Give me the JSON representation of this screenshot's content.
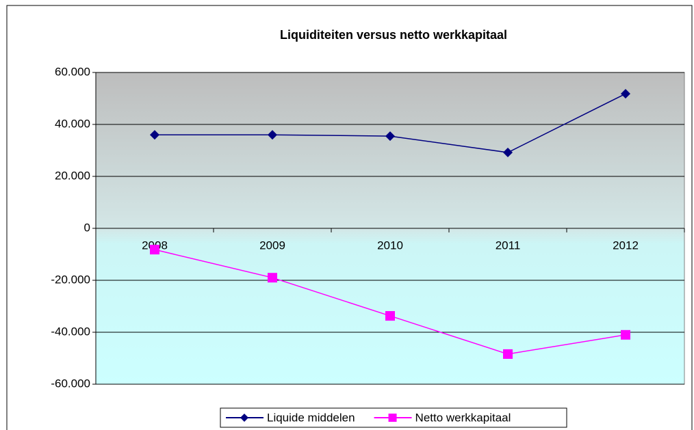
{
  "chart_data": {
    "type": "line",
    "title": "Liquiditeiten  versus netto werkkapitaal",
    "categories": [
      "2008",
      "2009",
      "2010",
      "2011",
      "2012"
    ],
    "series": [
      {
        "name": "Liquide middelen",
        "color": "#000080",
        "marker": "diamond",
        "values": [
          36000,
          36000,
          35500,
          29200,
          51800
        ]
      },
      {
        "name": "Netto werkkapitaal",
        "color": "#ff00ff",
        "marker": "square",
        "values": [
          -8200,
          -19000,
          -33700,
          -48400,
          -41000
        ]
      }
    ],
    "ylim": [
      -60000,
      60000
    ],
    "yticks": [
      {
        "value": -60000,
        "label": "-60.000"
      },
      {
        "value": -40000,
        "label": "-40.000"
      },
      {
        "value": -20000,
        "label": "-20.000"
      },
      0,
      {
        "value": 20000,
        "label": "20.000"
      },
      {
        "value": 40000,
        "label": "40.000"
      },
      {
        "value": 60000,
        "label": "60.000"
      }
    ],
    "grid": true,
    "legend": "bottom"
  }
}
